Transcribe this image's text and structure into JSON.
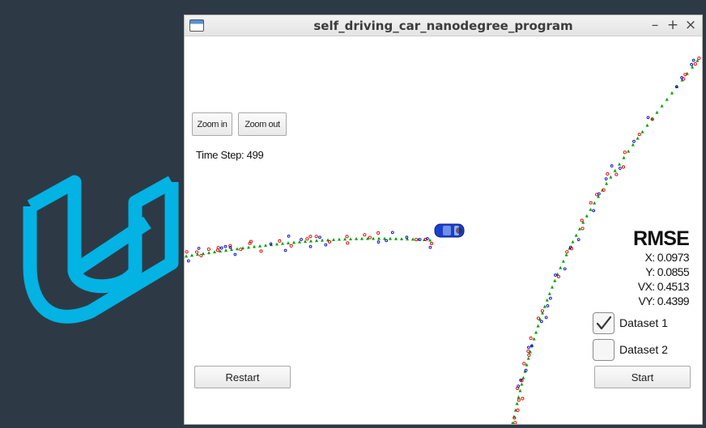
{
  "window": {
    "title": "self_driving_car_nanodegree_program",
    "minimize_glyph": "–",
    "maximize_glyph": "+",
    "close_glyph": "×"
  },
  "toolbar": {
    "zoom_in_label": "Zoom in",
    "zoom_out_label": "Zoom out"
  },
  "status": {
    "time_step": "Time Step: 499"
  },
  "rmse": {
    "title": "RMSE",
    "x": "X: 0.0973",
    "y": "Y: 0.0855",
    "vx": "VX: 0.4513",
    "vy": "VY: 0.4399"
  },
  "datasets": {
    "dataset1_label": "Dataset 1",
    "dataset1_checked": true,
    "dataset2_label": "Dataset 2",
    "dataset2_checked": false
  },
  "actions": {
    "restart_label": "Restart",
    "start_label": "Start"
  },
  "colors": {
    "desktop": "#2d3a46",
    "logo": "#02b3e4",
    "estimate_marker": "#00a000",
    "lidar_marker": "#e00000",
    "radar_marker": "#0000cc",
    "car": "#1a3fd1"
  },
  "icons": {
    "logo": "udacity-logo",
    "car": "car-icon",
    "check": "checkmark-icon"
  }
}
